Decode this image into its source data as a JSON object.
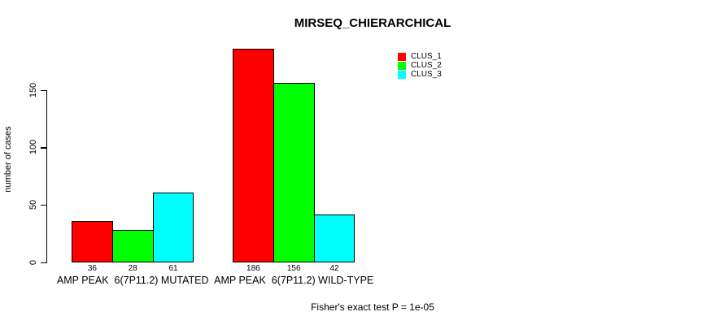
{
  "chart_data": {
    "type": "bar",
    "title": "MIRSEQ_CHIERARCHICAL",
    "ylabel": "number of cases",
    "xlabel": "",
    "footer": "Fisher's exact test P = 1e-05",
    "categories": [
      "AMP PEAK  6(7P11.2) MUTATED",
      "AMP PEAK  6(7P11.2) WILD-TYPE"
    ],
    "series": [
      {
        "name": "CLUS_1",
        "color": "#ff0000",
        "values": [
          36,
          186
        ]
      },
      {
        "name": "CLUS_2",
        "color": "#00ff00",
        "values": [
          28,
          156
        ]
      },
      {
        "name": "CLUS_3",
        "color": "#00ffff",
        "values": [
          61,
          42
        ]
      }
    ],
    "bar_value_labels": [
      [
        36,
        28,
        61
      ],
      [
        186,
        156,
        42
      ]
    ],
    "yticks": [
      0,
      50,
      100,
      150
    ],
    "ylim": [
      0,
      190
    ],
    "grid": false,
    "legend_position": "top-right",
    "colors": {
      "background": "#ffffff",
      "text": "#000000"
    }
  }
}
